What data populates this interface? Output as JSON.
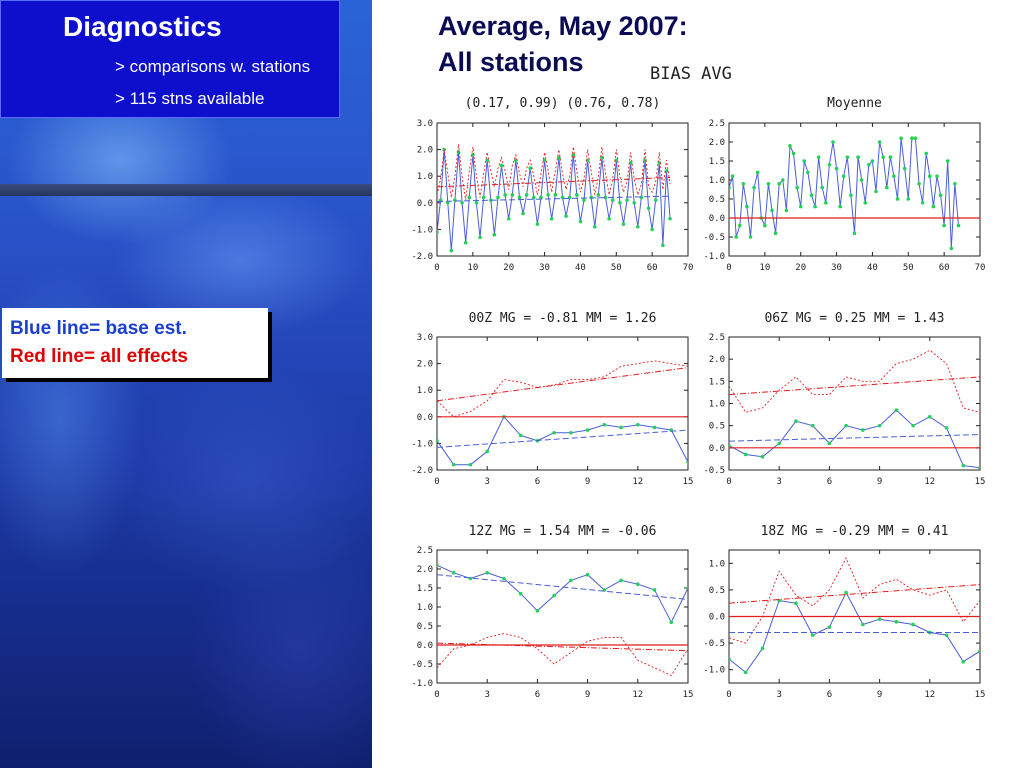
{
  "sidebar": {
    "title": "Diagnostics",
    "line1": "> comparisons w. stations",
    "line2": "> 115 stns available"
  },
  "legend": {
    "blue": "Blue line= base est.",
    "red": "Red line=  all effects"
  },
  "slide": {
    "title_line1": "Average, May 2007:",
    "title_line2": "All stations"
  },
  "figure": {
    "suptitle": "BIAS AVG"
  },
  "colors": {
    "blue": "#4a5ed8",
    "red": "#e21b1b",
    "green": "#22d05a"
  },
  "chart_data": [
    {
      "type": "line",
      "title": "(0.17, 0.99) (0.76, 0.78)",
      "xlim": [
        0,
        70
      ],
      "ylim": [
        -2.0,
        3.0
      ],
      "xticks": [
        "0",
        "10",
        "20",
        "30",
        "40",
        "50",
        "60",
        "70"
      ],
      "yticks": [
        "-2.0",
        "-1.0",
        "0.0",
        "1.0",
        "2.0",
        "3.0"
      ],
      "x": [
        0,
        1,
        2,
        3,
        4,
        5,
        6,
        7,
        8,
        9,
        10,
        11,
        12,
        13,
        14,
        15,
        16,
        17,
        18,
        19,
        20,
        21,
        22,
        23,
        24,
        25,
        26,
        27,
        28,
        29,
        30,
        31,
        32,
        33,
        34,
        35,
        36,
        37,
        38,
        39,
        40,
        41,
        42,
        43,
        44,
        45,
        46,
        47,
        48,
        49,
        50,
        51,
        52,
        53,
        54,
        55,
        56,
        57,
        58,
        59,
        60,
        61,
        62,
        63,
        64,
        65
      ],
      "series": [
        {
          "color": "blue",
          "markers": true,
          "values": [
            -1.1,
            0.1,
            2.0,
            0.0,
            -1.8,
            0.1,
            1.9,
            0.0,
            -1.5,
            0.2,
            1.8,
            0.0,
            -1.3,
            0.2,
            1.6,
            0.1,
            -1.2,
            0.2,
            1.4,
            0.3,
            -0.6,
            0.3,
            1.6,
            0.2,
            -0.4,
            0.3,
            1.3,
            0.2,
            -0.8,
            0.2,
            1.6,
            0.3,
            -0.6,
            0.3,
            1.7,
            0.2,
            -0.5,
            0.2,
            1.8,
            0.3,
            -0.7,
            0.1,
            1.6,
            0.2,
            -0.9,
            0.3,
            1.7,
            0.2,
            -0.6,
            0.1,
            1.6,
            0.0,
            -0.8,
            0.1,
            1.5,
            0.0,
            -0.9,
            0.2,
            1.6,
            -0.2,
            -1.0,
            0.1,
            1.5,
            -1.6,
            1.2,
            -0.6
          ]
        },
        {
          "color": "red",
          "dashed": true,
          "values": [
            0.3,
            0.9,
            2.0,
            1.1,
            0.2,
            1.0,
            2.2,
            1.0,
            0.1,
            1.2,
            2.1,
            1.0,
            0.2,
            1.1,
            1.9,
            1.2,
            0.6,
            1.3,
            1.7,
            1.2,
            0.5,
            1.4,
            1.8,
            1.1,
            0.6,
            1.3,
            1.6,
            1.0,
            0.3,
            1.1,
            1.9,
            1.2,
            0.4,
            1.2,
            2.0,
            1.1,
            0.5,
            1.0,
            2.1,
            1.2,
            0.4,
            0.9,
            2.0,
            1.2,
            0.3,
            1.0,
            2.1,
            1.1,
            0.3,
            0.9,
            2.0,
            1.0,
            0.4,
            0.8,
            1.9,
            0.9,
            0.3,
            0.7,
            2.0,
            0.6,
            0.4,
            0.8,
            1.9,
            0.5,
            1.6,
            0.7
          ]
        },
        {
          "color": "red",
          "trend": [
            0.6,
            0.95
          ]
        },
        {
          "color": "blue",
          "dashed": true,
          "trend": [
            0.05,
            0.25
          ]
        }
      ]
    },
    {
      "type": "line",
      "title": "Moyenne",
      "xlim": [
        0,
        70
      ],
      "ylim": [
        -1.0,
        2.5
      ],
      "xticks": [
        "0",
        "10",
        "20",
        "30",
        "40",
        "50",
        "60",
        "70"
      ],
      "yticks": [
        "-1.0",
        "-0.5",
        "0.0",
        "0.5",
        "1.0",
        "1.5",
        "2.0",
        "2.5"
      ],
      "x": [
        0,
        1,
        2,
        3,
        4,
        5,
        6,
        7,
        8,
        9,
        10,
        11,
        12,
        13,
        14,
        15,
        16,
        17,
        18,
        19,
        20,
        21,
        22,
        23,
        24,
        25,
        26,
        27,
        28,
        29,
        30,
        31,
        32,
        33,
        34,
        35,
        36,
        37,
        38,
        39,
        40,
        41,
        42,
        43,
        44,
        45,
        46,
        47,
        48,
        49,
        50,
        51,
        52,
        53,
        54,
        55,
        56,
        57,
        58,
        59,
        60,
        61,
        62,
        63,
        64
      ],
      "series": [
        {
          "color": "blue",
          "markers": true,
          "values": [
            0.8,
            1.1,
            -0.5,
            -0.2,
            0.9,
            0.3,
            -0.5,
            0.8,
            1.2,
            0.0,
            -0.2,
            0.9,
            0.2,
            -0.4,
            0.9,
            1.0,
            0.2,
            1.9,
            1.7,
            0.8,
            0.3,
            1.5,
            1.2,
            0.6,
            0.3,
            1.6,
            0.8,
            0.4,
            1.4,
            2.0,
            1.3,
            0.3,
            1.1,
            1.6,
            0.6,
            -0.4,
            1.6,
            1.0,
            0.4,
            1.4,
            1.5,
            0.7,
            2.0,
            1.6,
            0.8,
            1.6,
            1.1,
            0.5,
            2.1,
            1.3,
            0.5,
            2.1,
            2.1,
            0.9,
            0.4,
            1.7,
            1.1,
            0.3,
            1.1,
            0.6,
            -0.2,
            1.5,
            -0.8,
            0.9,
            -0.2
          ]
        },
        {
          "color": "red",
          "zero": true
        }
      ]
    },
    {
      "type": "line",
      "title": "00Z MG = -0.81  MM = 1.26",
      "xlim": [
        0,
        15
      ],
      "ylim": [
        -2.0,
        3.0
      ],
      "xticks": [
        "0",
        "3",
        "6",
        "9",
        "12",
        "15"
      ],
      "yticks": [
        "-2.0",
        "-1.0",
        "0.0",
        "1.0",
        "2.0",
        "3.0"
      ],
      "x": [
        0,
        1,
        2,
        3,
        4,
        5,
        6,
        7,
        8,
        9,
        10,
        11,
        12,
        13,
        14,
        15
      ],
      "series": [
        {
          "color": "blue",
          "markers": true,
          "values": [
            -0.9,
            -1.8,
            -1.8,
            -1.3,
            0.0,
            -0.7,
            -0.9,
            -0.6,
            -0.6,
            -0.5,
            -0.3,
            -0.4,
            -0.3,
            -0.4,
            -0.5,
            -1.7
          ]
        },
        {
          "color": "red",
          "dashed": true,
          "values": [
            0.6,
            0.0,
            0.2,
            0.6,
            1.4,
            1.3,
            1.1,
            1.2,
            1.4,
            1.4,
            1.5,
            1.9,
            2.0,
            2.1,
            2.0,
            1.9
          ]
        },
        {
          "color": "red",
          "trend": [
            0.6,
            1.85
          ]
        },
        {
          "color": "blue",
          "dashed": true,
          "trend": [
            -1.15,
            -0.5
          ]
        },
        {
          "color": "red",
          "zero": true
        }
      ]
    },
    {
      "type": "line",
      "title": "06Z MG = 0.25  MM = 1.43",
      "xlim": [
        0,
        15
      ],
      "ylim": [
        -0.5,
        2.5
      ],
      "xticks": [
        "0",
        "3",
        "6",
        "9",
        "12",
        "15"
      ],
      "yticks": [
        "-0.5",
        "0.0",
        "0.5",
        "1.0",
        "1.5",
        "2.0",
        "2.5"
      ],
      "x": [
        0,
        1,
        2,
        3,
        4,
        5,
        6,
        7,
        8,
        9,
        10,
        11,
        12,
        13,
        14,
        15
      ],
      "series": [
        {
          "color": "blue",
          "markers": true,
          "values": [
            0.05,
            -0.15,
            -0.2,
            0.1,
            0.6,
            0.5,
            0.1,
            0.5,
            0.4,
            0.5,
            0.85,
            0.5,
            0.7,
            0.45,
            -0.4,
            -0.45
          ]
        },
        {
          "color": "red",
          "dashed": true,
          "values": [
            1.4,
            0.8,
            0.9,
            1.3,
            1.6,
            1.2,
            1.2,
            1.6,
            1.5,
            1.5,
            1.9,
            2.0,
            2.2,
            1.9,
            0.9,
            0.8
          ]
        },
        {
          "color": "red",
          "trend": [
            1.2,
            1.6
          ]
        },
        {
          "color": "blue",
          "dashed": true,
          "trend": [
            0.15,
            0.3
          ]
        },
        {
          "color": "red",
          "zero": true
        }
      ]
    },
    {
      "type": "line",
      "title": "12Z MG = 1.54  MM = -0.06",
      "xlim": [
        0,
        15
      ],
      "ylim": [
        -1.0,
        2.5
      ],
      "xticks": [
        "0",
        "3",
        "6",
        "9",
        "12",
        "15"
      ],
      "yticks": [
        "-1.0",
        "-0.5",
        "0.0",
        "0.5",
        "1.0",
        "1.5",
        "2.0",
        "2.5"
      ],
      "x": [
        0,
        1,
        2,
        3,
        4,
        5,
        6,
        7,
        8,
        9,
        10,
        11,
        12,
        13,
        14,
        15
      ],
      "series": [
        {
          "color": "blue",
          "markers": true,
          "values": [
            2.1,
            1.9,
            1.75,
            1.9,
            1.75,
            1.35,
            0.9,
            1.3,
            1.7,
            1.85,
            1.45,
            1.7,
            1.6,
            1.45,
            0.6,
            1.5
          ]
        },
        {
          "color": "red",
          "dashed": true,
          "values": [
            -0.6,
            -0.1,
            0.0,
            0.2,
            0.3,
            0.2,
            -0.1,
            -0.5,
            -0.2,
            0.1,
            0.2,
            0.2,
            -0.4,
            -0.6,
            -0.8,
            -0.1
          ]
        },
        {
          "color": "blue",
          "dashed": true,
          "trend": [
            1.85,
            1.2
          ]
        },
        {
          "color": "red",
          "trend": [
            0.05,
            -0.15
          ]
        },
        {
          "color": "red",
          "zero": true
        }
      ]
    },
    {
      "type": "line",
      "title": "18Z MG = -0.29  MM = 0.41",
      "xlim": [
        0,
        15
      ],
      "ylim": [
        -1.25,
        1.25
      ],
      "xticks": [
        "0",
        "3",
        "6",
        "9",
        "12",
        "15"
      ],
      "yticks": [
        "-1.0",
        "-0.5",
        "0.0",
        "0.5",
        "1.0"
      ],
      "x": [
        0,
        1,
        2,
        3,
        4,
        5,
        6,
        7,
        8,
        9,
        10,
        11,
        12,
        13,
        14,
        15
      ],
      "series": [
        {
          "color": "blue",
          "markers": true,
          "values": [
            -0.8,
            -1.05,
            -0.6,
            0.3,
            0.25,
            -0.35,
            -0.2,
            0.45,
            -0.15,
            -0.05,
            -0.1,
            -0.15,
            -0.3,
            -0.35,
            -0.85,
            -0.65
          ]
        },
        {
          "color": "red",
          "dashed": true,
          "values": [
            -0.4,
            -0.5,
            0.0,
            0.85,
            0.4,
            0.2,
            0.5,
            1.1,
            0.35,
            0.6,
            0.7,
            0.5,
            0.4,
            0.5,
            -0.1,
            0.3
          ]
        },
        {
          "color": "red",
          "trend": [
            0.25,
            0.6
          ]
        },
        {
          "color": "blue",
          "dashed": true,
          "trend": [
            -0.3,
            -0.3
          ]
        },
        {
          "color": "red",
          "zero": true
        }
      ]
    }
  ]
}
